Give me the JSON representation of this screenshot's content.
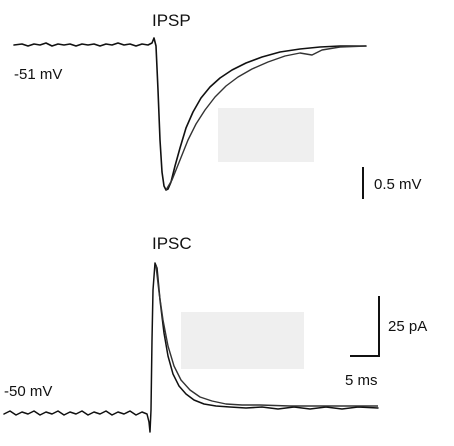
{
  "panels": [
    {
      "title": "IPSP",
      "holding": "-51 mV"
    },
    {
      "title": "IPSC",
      "holding": "-50 mV"
    }
  ],
  "scale_bars": {
    "voltage": "0.5 mV",
    "current": "25 pA",
    "time": "5 ms"
  },
  "colors": {
    "trace": "#111111",
    "fit": "#333333",
    "placeholder_box": "#efefef"
  }
}
